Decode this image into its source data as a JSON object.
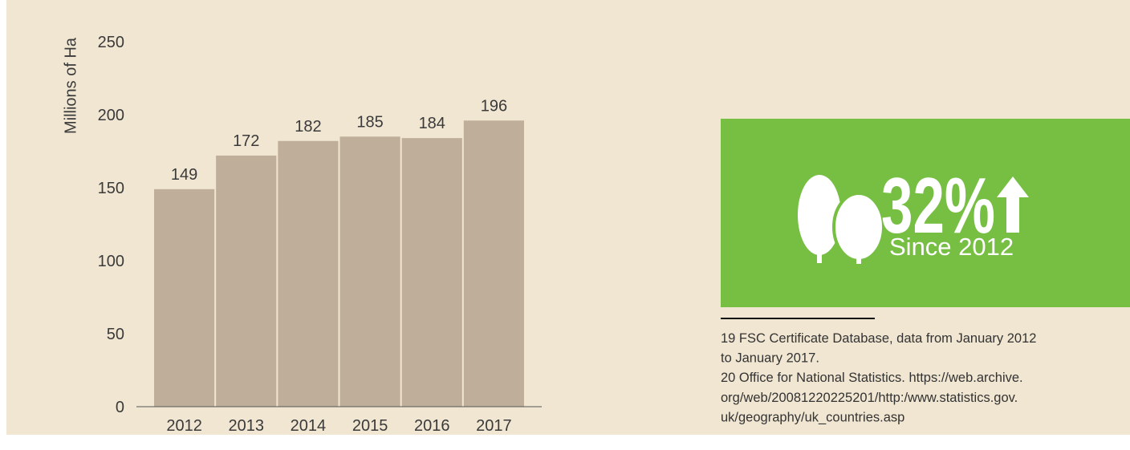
{
  "chart_data": {
    "type": "bar",
    "y_label": "Millions of Ha",
    "categories": [
      "2012",
      "2013",
      "2014",
      "2015",
      "2016",
      "2017"
    ],
    "values": [
      149,
      172,
      182,
      185,
      184,
      196
    ],
    "color": "#bfae99",
    "ylim": [
      0,
      250
    ],
    "yticks": [
      0,
      50,
      100,
      150,
      200,
      250
    ]
  },
  "callout": {
    "headline": "32%",
    "subtitle": "Since 2012"
  },
  "footnotes": [
    [
      "19 FSC Certificate Database, data from January 2012",
      "to January 2017."
    ],
    [
      "20 Office for National Statistics. https://web.archive.",
      "org/web/20081220225201/http:/www.statistics.gov.",
      "uk/geography/uk_countries.asp"
    ]
  ]
}
